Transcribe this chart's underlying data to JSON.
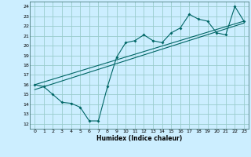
{
  "title": "",
  "xlabel": "Humidex (Indice chaleur)",
  "bg_color": "#cceeff",
  "grid_color": "#99cccc",
  "line_color": "#006666",
  "xlim": [
    -0.5,
    23.5
  ],
  "ylim": [
    11.5,
    24.5
  ],
  "yticks": [
    12,
    13,
    14,
    15,
    16,
    17,
    18,
    19,
    20,
    21,
    22,
    23,
    24
  ],
  "xticks": [
    0,
    1,
    2,
    3,
    4,
    5,
    6,
    7,
    8,
    9,
    10,
    11,
    12,
    13,
    14,
    15,
    16,
    17,
    18,
    19,
    20,
    21,
    22,
    23
  ],
  "line1_x": [
    0,
    1,
    2,
    3,
    4,
    5,
    6,
    7,
    8,
    9,
    10,
    11,
    12,
    13,
    14,
    15,
    16,
    17,
    18,
    19,
    20,
    21,
    22,
    23
  ],
  "line1_y": [
    16.0,
    15.8,
    15.0,
    14.2,
    14.1,
    13.7,
    12.3,
    12.3,
    15.8,
    18.8,
    20.3,
    20.5,
    21.1,
    20.5,
    20.3,
    21.3,
    21.8,
    23.2,
    22.7,
    22.5,
    21.3,
    21.1,
    24.0,
    22.5
  ],
  "line2_x": [
    0,
    23
  ],
  "line2_y": [
    15.5,
    22.3
  ],
  "line3_x": [
    0,
    23
  ],
  "line3_y": [
    16.0,
    22.5
  ]
}
